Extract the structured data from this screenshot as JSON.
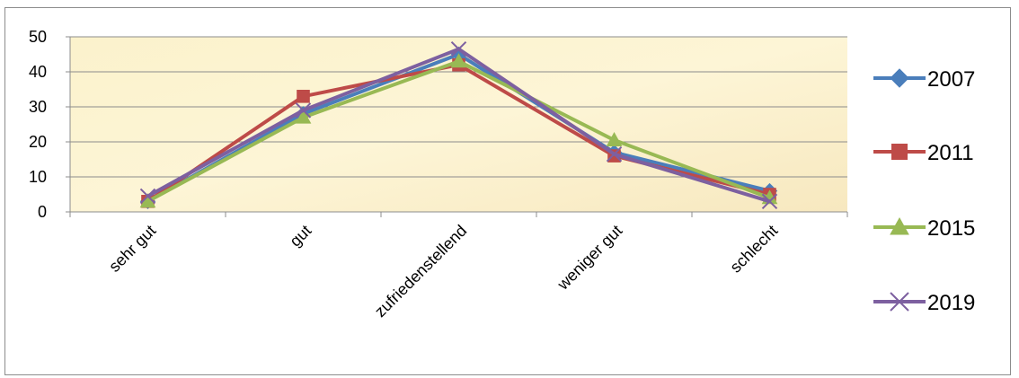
{
  "chart_data": {
    "type": "line",
    "categories": [
      "sehr gut",
      "gut",
      "zufriedenstellend",
      "weniger gut",
      "schlecht"
    ],
    "ylim": [
      0,
      50
    ],
    "yticks": [
      0,
      10,
      20,
      30,
      40,
      50
    ],
    "grid": true,
    "legend_position": "right",
    "series": [
      {
        "name": "2007",
        "color": "#4a7ebb",
        "marker": "diamond",
        "values": [
          3,
          28,
          45,
          17,
          6
        ]
      },
      {
        "name": "2011",
        "color": "#be4b48",
        "marker": "square",
        "values": [
          3,
          33,
          42,
          16,
          5
        ]
      },
      {
        "name": "2015",
        "color": "#98b954",
        "marker": "triangle",
        "values": [
          3,
          27,
          43,
          20.5,
          4
        ]
      },
      {
        "name": "2019",
        "color": "#7d60a0",
        "marker": "x",
        "values": [
          4.5,
          29,
          46.5,
          16.5,
          3
        ]
      }
    ]
  }
}
